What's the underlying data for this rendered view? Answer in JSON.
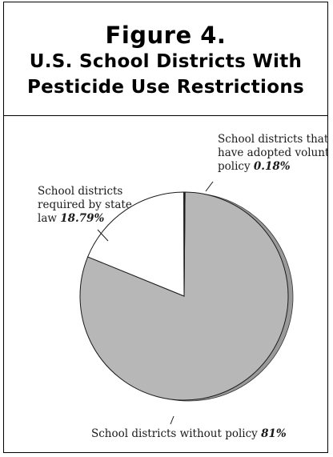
{
  "figure": {
    "label": "Figure 4.",
    "title_line1": "U.S. School Districts With",
    "title_line2": "Pesticide Use Restrictions"
  },
  "chart_data": {
    "type": "pie",
    "title": "U.S. School Districts With Pesticide Use Restrictions",
    "slices": [
      {
        "label": "School districts without policy",
        "value": 81,
        "value_label": "81%",
        "color": "#b7b7b7"
      },
      {
        "label": "School districts required by state law",
        "value": 18.79,
        "value_label": "18.79%",
        "color": "#ffffff"
      },
      {
        "label": "School districts that have adopted voluntary policy",
        "value": 0.18,
        "value_label": "0.18%",
        "color": "#1c1c1c"
      }
    ],
    "legend": "none"
  },
  "labels": {
    "without_policy": {
      "line1": "School districts without policy ",
      "pct": "81%"
    },
    "state_law": {
      "line1": "School districts",
      "line2": "required by state",
      "line3": "law ",
      "pct": "18.79%"
    },
    "voluntary": {
      "line1": "School districts that",
      "line2": "have adopted voluntary",
      "line3": "policy ",
      "pct": "0.18%"
    }
  }
}
